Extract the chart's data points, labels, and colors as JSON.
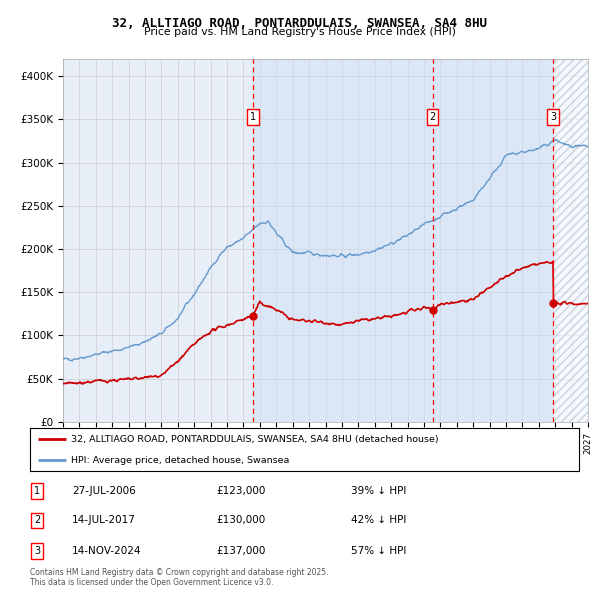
{
  "title_line1": "32, ALLTIAGO ROAD, PONTARDDULAIS, SWANSEA, SA4 8HU",
  "title_line2": "Price paid vs. HM Land Registry's House Price Index (HPI)",
  "background_color": "#ffffff",
  "plot_bg_color": "#e8eef8",
  "hpi_color": "#6699cc",
  "price_color": "#cc0000",
  "grid_color": "#cccccc",
  "ylim": [
    0,
    420000
  ],
  "xlim_start": 1995.0,
  "xlim_end": 2027.0,
  "sale_dates": [
    2006.57,
    2017.53,
    2024.87
  ],
  "sale_prices": [
    123000,
    130000,
    137000
  ],
  "sale_labels": [
    "1",
    "2",
    "3"
  ],
  "legend_line1": "32, ALLTIAGO ROAD, PONTARDDULAIS, SWANSEA, SA4 8HU (detached house)",
  "legend_line2": "HPI: Average price, detached house, Swansea",
  "table_rows": [
    [
      "1",
      "27-JUL-2006",
      "£123,000",
      "39% ↓ HPI"
    ],
    [
      "2",
      "14-JUL-2017",
      "£130,000",
      "42% ↓ HPI"
    ],
    [
      "3",
      "14-NOV-2024",
      "£137,000",
      "57% ↓ HPI"
    ]
  ],
  "footnote": "Contains HM Land Registry data © Crown copyright and database right 2025.\nThis data is licensed under the Open Government Licence v3.0.",
  "shaded_start": 2006.57,
  "shaded_end": 2024.87,
  "hatch_start": 2024.87,
  "hatch_end": 2027.0
}
